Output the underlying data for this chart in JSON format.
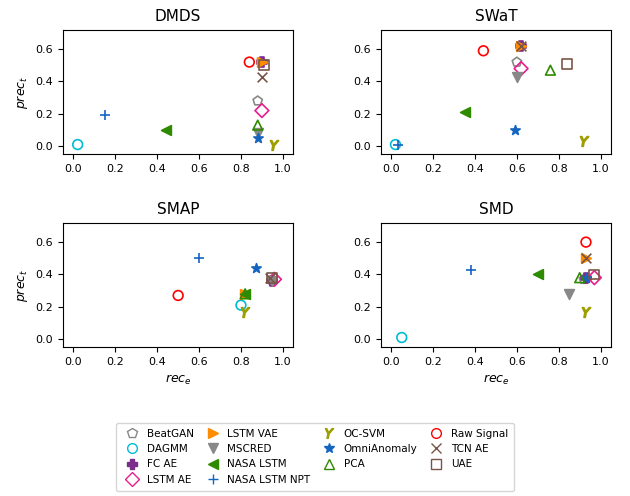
{
  "datasets": {
    "DMDS": {
      "BeatGAN": [
        0.88,
        0.28
      ],
      "DAGMM": [
        0.02,
        0.01
      ],
      "FC_AE": [
        0.9,
        0.52
      ],
      "LSTM_AE": [
        0.9,
        0.22
      ],
      "LSTM_VAE": [
        0.9,
        0.52
      ],
      "MSCRED": [
        0.88,
        0.08
      ],
      "NASA_LSTM": [
        0.44,
        0.1
      ],
      "NASA_LSTM_NPT": [
        0.15,
        0.19
      ],
      "OC_SVM": [
        0.96,
        0.01
      ],
      "OmniAnomaly": [
        0.88,
        0.05
      ],
      "PCA": [
        0.88,
        0.13
      ],
      "Raw_Signal": [
        0.84,
        0.52
      ],
      "TCN_AE": [
        0.9,
        0.43
      ],
      "UAE": [
        0.91,
        0.5
      ]
    },
    "SWaT": {
      "BeatGAN": [
        0.6,
        0.52
      ],
      "DAGMM": [
        0.02,
        0.01
      ],
      "FC_AE": [
        0.62,
        0.62
      ],
      "LSTM_AE": [
        0.62,
        0.48
      ],
      "LSTM_VAE": [
        0.62,
        0.62
      ],
      "MSCRED": [
        0.6,
        0.43
      ],
      "NASA_LSTM": [
        0.35,
        0.21
      ],
      "NASA_LSTM_NPT": [
        0.03,
        0.01
      ],
      "OC_SVM": [
        0.92,
        0.03
      ],
      "OmniAnomaly": [
        0.59,
        0.1
      ],
      "PCA": [
        0.76,
        0.47
      ],
      "Raw_Signal": [
        0.44,
        0.59
      ],
      "TCN_AE": [
        0.62,
        0.62
      ],
      "UAE": [
        0.84,
        0.51
      ]
    },
    "SMAP": {
      "BeatGAN": [
        0.95,
        0.36
      ],
      "DAGMM": [
        0.8,
        0.21
      ],
      "FC_AE": [
        0.95,
        0.36
      ],
      "LSTM_AE": [
        0.96,
        0.37
      ],
      "LSTM_VAE": [
        0.82,
        0.28
      ],
      "MSCRED": [
        0.95,
        0.36
      ],
      "NASA_LSTM": [
        0.82,
        0.28
      ],
      "NASA_LSTM_NPT": [
        0.6,
        0.5
      ],
      "OC_SVM": [
        0.82,
        0.17
      ],
      "OmniAnomaly": [
        0.87,
        0.44
      ],
      "PCA": [
        0.82,
        0.28
      ],
      "Raw_Signal": [
        0.5,
        0.27
      ],
      "TCN_AE": [
        0.94,
        0.38
      ],
      "UAE": [
        0.95,
        0.38
      ]
    },
    "SMD": {
      "BeatGAN": [
        0.92,
        0.37
      ],
      "DAGMM": [
        0.05,
        0.01
      ],
      "FC_AE": [
        0.93,
        0.38
      ],
      "LSTM_AE": [
        0.97,
        0.38
      ],
      "LSTM_VAE": [
        0.93,
        0.5
      ],
      "MSCRED": [
        0.85,
        0.28
      ],
      "NASA_LSTM": [
        0.7,
        0.4
      ],
      "NASA_LSTM_NPT": [
        0.38,
        0.43
      ],
      "OC_SVM": [
        0.93,
        0.17
      ],
      "OmniAnomaly": [
        0.93,
        0.38
      ],
      "PCA": [
        0.9,
        0.38
      ],
      "Raw_Signal": [
        0.93,
        0.6
      ],
      "TCN_AE": [
        0.93,
        0.5
      ],
      "UAE": [
        0.97,
        0.4
      ]
    }
  },
  "markers": {
    "BeatGAN": {
      "marker": "p",
      "color": "#888888",
      "facecolor": "none"
    },
    "DAGMM": {
      "marker": "o",
      "color": "#00bcd4",
      "facecolor": "none"
    },
    "FC_AE": {
      "marker": "P",
      "color": "#7B2D8B",
      "facecolor": "#7B2D8B"
    },
    "LSTM_AE": {
      "marker": "D",
      "color": "#E91E8C",
      "facecolor": "none"
    },
    "LSTM_VAE": {
      "marker": ">",
      "color": "#FF8C00",
      "facecolor": "#FF8C00"
    },
    "MSCRED": {
      "marker": "v",
      "color": "#888888",
      "facecolor": "#888888"
    },
    "NASA_LSTM": {
      "marker": "<",
      "color": "#2E8B00",
      "facecolor": "#2E8B00"
    },
    "NASA_LSTM_NPT": {
      "marker": "+",
      "color": "#1565C0",
      "facecolor": "#1565C0"
    },
    "OC_SVM": {
      "marker": "$Y$",
      "color": "#9E9E00",
      "facecolor": "#9E9E00"
    },
    "OmniAnomaly": {
      "marker": "*",
      "color": "#1565C0",
      "facecolor": "#1565C0"
    },
    "PCA": {
      "marker": "^",
      "color": "#2E8B00",
      "facecolor": "none"
    },
    "Raw_Signal": {
      "marker": "o",
      "color": "#FF0000",
      "facecolor": "none"
    },
    "TCN_AE": {
      "marker": "x",
      "color": "#795548",
      "facecolor": "#795548"
    },
    "UAE": {
      "marker": "s",
      "color": "#795548",
      "facecolor": "none"
    }
  },
  "subplot_titles": [
    "DMDS",
    "SWaT",
    "SMAP",
    "SMD"
  ],
  "legend": [
    {
      "label": "BeatGAN",
      "marker": "p",
      "color": "#888888",
      "facecolor": "none"
    },
    {
      "label": "DAGMM",
      "marker": "o",
      "color": "#00bcd4",
      "facecolor": "none"
    },
    {
      "label": "FC AE",
      "marker": "P",
      "color": "#7B2D8B",
      "facecolor": "#7B2D8B"
    },
    {
      "label": "LSTM AE",
      "marker": "D",
      "color": "#E91E8C",
      "facecolor": "none"
    },
    {
      "label": "LSTM VAE",
      "marker": ">",
      "color": "#FF8C00",
      "facecolor": "#FF8C00"
    },
    {
      "label": "MSCRED",
      "marker": "v",
      "color": "#888888",
      "facecolor": "#888888"
    },
    {
      "label": "NASA LSTM",
      "marker": "<",
      "color": "#2E8B00",
      "facecolor": "#2E8B00"
    },
    {
      "label": "NASA LSTM NPT",
      "marker": "+",
      "color": "#1565C0",
      "facecolor": "#1565C0"
    },
    {
      "label": "OC-SVM",
      "marker": "$Y$",
      "color": "#9E9E00",
      "facecolor": "#9E9E00"
    },
    {
      "label": "OmniAnomaly",
      "marker": "*",
      "color": "#1565C0",
      "facecolor": "#1565C0"
    },
    {
      "label": "PCA",
      "marker": "^",
      "color": "#2E8B00",
      "facecolor": "none"
    },
    {
      "label": "Raw Signal",
      "marker": "o",
      "color": "#FF0000",
      "facecolor": "none"
    },
    {
      "label": "TCN AE",
      "marker": "x",
      "color": "#795548",
      "facecolor": "#795548"
    },
    {
      "label": "UAE",
      "marker": "s",
      "color": "#795548",
      "facecolor": "none"
    }
  ]
}
